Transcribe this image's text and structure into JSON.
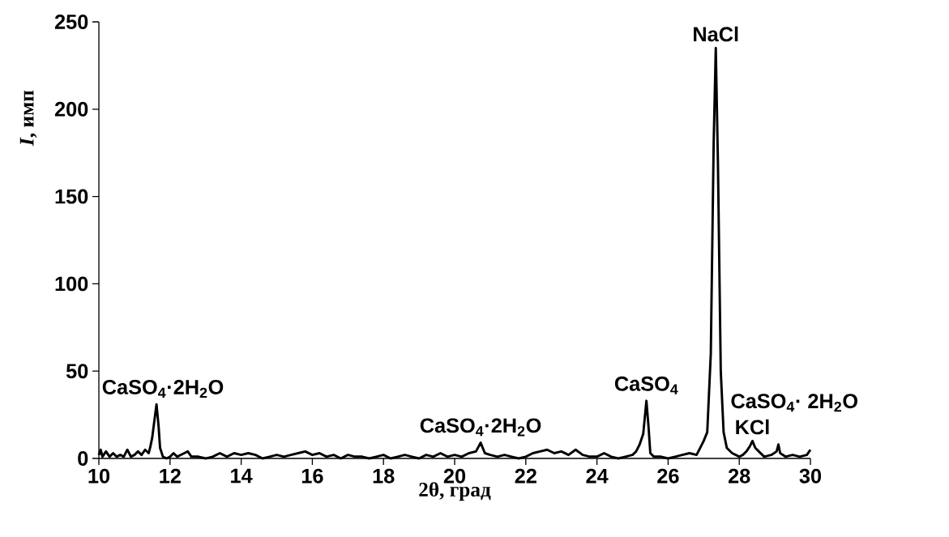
{
  "chart_data": {
    "type": "line",
    "xlabel": "2θ, град",
    "ylabel": "*I*, имп",
    "xlim": [
      10,
      30
    ],
    "xticks": [
      10,
      12,
      14,
      16,
      18,
      20,
      22,
      24,
      26,
      28,
      30
    ],
    "ylim": [
      0,
      250
    ],
    "yticks": [
      0,
      50,
      100,
      150,
      200,
      250
    ],
    "marker": "none",
    "line_style": "solid",
    "x": [
      10.0,
      10.05,
      10.1,
      10.2,
      10.3,
      10.4,
      10.5,
      10.6,
      10.7,
      10.8,
      10.9,
      11.0,
      11.1,
      11.2,
      11.3,
      11.4,
      11.45,
      11.5,
      11.55,
      11.62,
      11.68,
      11.72,
      11.8,
      11.9,
      12.0,
      12.1,
      12.2,
      12.4,
      12.5,
      12.6,
      12.8,
      13.0,
      13.2,
      13.4,
      13.6,
      13.8,
      14.0,
      14.2,
      14.4,
      14.6,
      14.8,
      15.0,
      15.2,
      15.4,
      15.6,
      15.8,
      16.0,
      16.2,
      16.4,
      16.6,
      16.8,
      17.0,
      17.2,
      17.4,
      17.6,
      17.8,
      18.0,
      18.2,
      18.4,
      18.6,
      18.8,
      19.0,
      19.2,
      19.4,
      19.6,
      19.8,
      20.0,
      20.2,
      20.4,
      20.6,
      20.73,
      20.85,
      21.0,
      21.2,
      21.4,
      21.6,
      21.8,
      22.0,
      22.2,
      22.4,
      22.6,
      22.8,
      23.0,
      23.2,
      23.4,
      23.6,
      23.8,
      24.0,
      24.2,
      24.4,
      24.6,
      24.8,
      25.0,
      25.1,
      25.2,
      25.3,
      25.39,
      25.45,
      25.5,
      25.6,
      25.8,
      26.0,
      26.2,
      26.4,
      26.6,
      26.8,
      26.9,
      27.0,
      27.1,
      27.2,
      27.28,
      27.34,
      27.4,
      27.48,
      27.56,
      27.65,
      27.8,
      27.9,
      28.0,
      28.1,
      28.2,
      28.3,
      28.37,
      28.45,
      28.55,
      28.7,
      28.9,
      29.05,
      29.1,
      29.15,
      29.3,
      29.5,
      29.7,
      29.9,
      30.0
    ],
    "series": [
      {
        "color": "#000000",
        "values": [
          2,
          5,
          1,
          4,
          1,
          3,
          1,
          2,
          1,
          5,
          1,
          2,
          4,
          2,
          5,
          3,
          7,
          12,
          20,
          31,
          18,
          6,
          1,
          0,
          1,
          3,
          1,
          3,
          4,
          1,
          1,
          0,
          1,
          3,
          1,
          3,
          2,
          3,
          2,
          0,
          1,
          2,
          1,
          2,
          3,
          4,
          2,
          3,
          1,
          2,
          0,
          2,
          1,
          1,
          0,
          1,
          2,
          0,
          1,
          2,
          1,
          0,
          2,
          1,
          3,
          1,
          2,
          1,
          3,
          4,
          9,
          3,
          2,
          1,
          2,
          1,
          0,
          1,
          3,
          4,
          5,
          3,
          4,
          2,
          5,
          2,
          1,
          1,
          3,
          1,
          0,
          1,
          2,
          4,
          8,
          14,
          33,
          18,
          3,
          1,
          1,
          0,
          1,
          2,
          3,
          2,
          6,
          10,
          15,
          60,
          180,
          235,
          170,
          50,
          15,
          6,
          3,
          2,
          1,
          2,
          4,
          7,
          10,
          6,
          4,
          1,
          2,
          4,
          8,
          3,
          1,
          2,
          1,
          2,
          5
        ]
      }
    ],
    "annotations": [
      {
        "text": "CaSO$_{4}$·2H$_{2}$O",
        "x": 11.62,
        "y": 31
      },
      {
        "text": "CaSO$_{4}$·2H$_{2}$O",
        "x": 20.73,
        "y": 9
      },
      {
        "text": "CaSO$_{4}$",
        "x": 25.39,
        "y": 33
      },
      {
        "text": "NaCl",
        "x": 27.34,
        "y": 235
      },
      {
        "text": "KCl",
        "x": 28.37,
        "y": 10
      },
      {
        "text": "CaSO$_{4}$· 2H$_{2}$O",
        "x": 29.1,
        "y": 8
      }
    ]
  }
}
